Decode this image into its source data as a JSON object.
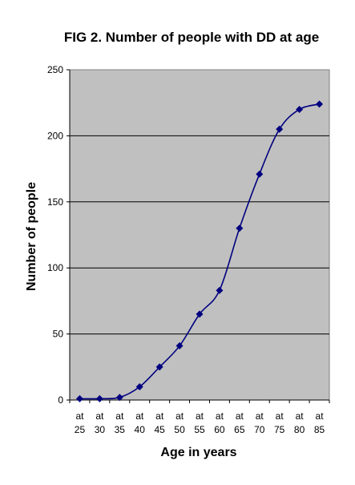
{
  "chart_data": {
    "type": "line",
    "title": "FIG 2. Number of people with DD at age",
    "xlabel": "Age in years",
    "ylabel": "Number of people",
    "categories": [
      [
        "at",
        "25"
      ],
      [
        "at",
        "30"
      ],
      [
        "at",
        "35"
      ],
      [
        "at",
        "40"
      ],
      [
        "at",
        "45"
      ],
      [
        "at",
        "50"
      ],
      [
        "at",
        "55"
      ],
      [
        "at",
        "60"
      ],
      [
        "at",
        "65"
      ],
      [
        "at",
        "70"
      ],
      [
        "at",
        "75"
      ],
      [
        "at",
        "80"
      ],
      [
        "at",
        "85"
      ]
    ],
    "values": [
      1,
      1,
      2,
      10,
      25,
      41,
      65,
      83,
      130,
      171,
      205,
      220,
      224
    ],
    "ylim": [
      0,
      250
    ],
    "yticks": [
      0,
      50,
      100,
      150,
      200,
      250
    ],
    "grid": "horizontal",
    "legend": "none",
    "colors": {
      "plot_background": "#c0c0c0",
      "line": "#000080",
      "marker": "#000080",
      "gridline": "#000000"
    }
  }
}
